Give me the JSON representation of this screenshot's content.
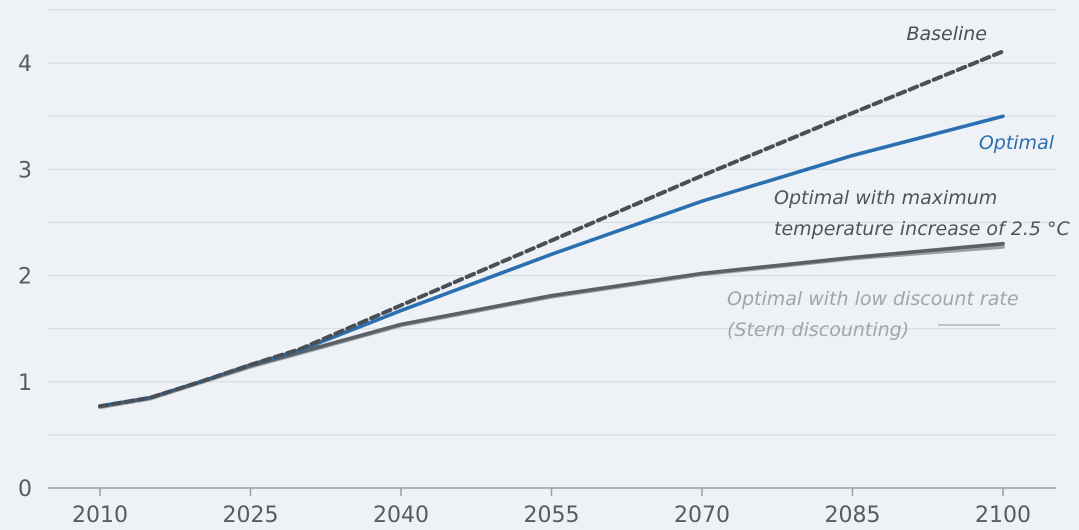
{
  "chart_data": {
    "type": "line",
    "x_ticks": [
      "2010",
      "2025",
      "2040",
      "2055",
      "2070",
      "2085",
      "2100"
    ],
    "y_ticks": [
      "0",
      "1",
      "2",
      "3",
      "4"
    ],
    "xlim": [
      2010,
      2100
    ],
    "ylim": [
      0,
      4.5
    ],
    "grid": "horizontal",
    "series": [
      {
        "name": "Baseline",
        "color": "#4a4f55",
        "style": "dashed",
        "x": [
          2010,
          2015,
          2020,
          2025,
          2030,
          2040,
          2055,
          2070,
          2085,
          2100
        ],
        "y": [
          0.77,
          0.85,
          1.0,
          1.16,
          1.31,
          1.72,
          2.33,
          2.94,
          3.53,
          4.11
        ]
      },
      {
        "name": "Optimal",
        "color": "#2a6fb0",
        "style": "solid",
        "x": [
          2010,
          2015,
          2020,
          2025,
          2030,
          2040,
          2055,
          2070,
          2085,
          2100
        ],
        "y": [
          0.77,
          0.85,
          1.0,
          1.16,
          1.3,
          1.67,
          2.2,
          2.7,
          3.13,
          3.5
        ]
      },
      {
        "name": "Optimal with maximum temperature increase of 2.5 °C",
        "color": "#5b6067",
        "style": "solid",
        "x": [
          2010,
          2015,
          2020,
          2025,
          2030,
          2040,
          2055,
          2070,
          2085,
          2100
        ],
        "y": [
          0.77,
          0.85,
          1.0,
          1.15,
          1.28,
          1.54,
          1.81,
          2.02,
          2.17,
          2.3
        ]
      },
      {
        "name": "Optimal with low discount rate (Stern discounting)",
        "color": "#9a9fa5",
        "style": "solid",
        "x": [
          2010,
          2015,
          2020,
          2025,
          2030,
          2040,
          2055,
          2070,
          2085,
          2100
        ],
        "y": [
          0.76,
          0.84,
          0.99,
          1.14,
          1.27,
          1.53,
          1.8,
          2.01,
          2.16,
          2.27
        ]
      }
    ],
    "annotations": {
      "baseline": "Baseline",
      "optimal": "Optimal",
      "max_temp_line1": "Optimal with maximum",
      "max_temp_line2": "temperature increase of 2.5 °C",
      "stern_line1": "Optimal with low discount rate",
      "stern_line2": "(Stern discounting)"
    }
  }
}
